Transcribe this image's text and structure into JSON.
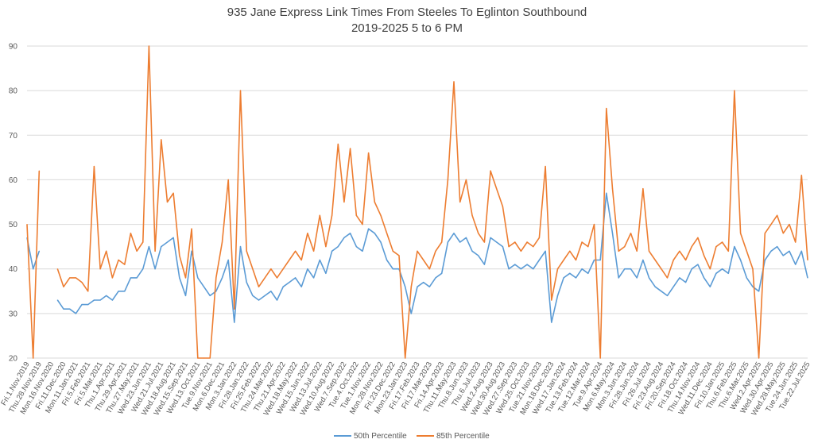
{
  "chart_data": {
    "type": "line",
    "title": "935 Jane Express Link Times From Steeles To Eglinton Southbound",
    "subtitle": "2019-2025 5 to 6 PM",
    "xlabel": "",
    "ylabel": "",
    "ylim": [
      20,
      90
    ],
    "yticks": [
      20,
      30,
      40,
      50,
      60,
      70,
      80,
      90
    ],
    "grid": true,
    "legend_position": "bottom",
    "colors": {
      "p50": "#5B9BD5",
      "p85": "#ED7D31",
      "grid": "#D9D9D9"
    },
    "tick_labels": [
      "Fri.1.Nov.2019",
      "Thu.28.Nov.2019",
      "Mon.16.Nov.2020",
      "Fri.11.Dec.2020",
      "Mon.11.Jan.2021",
      "Fri.5.Feb.2021",
      "Fri.5.Mar.2021",
      "Thu.1.Apr.2021",
      "Thu.29.Apr.2021",
      "Thu.27.May.2021",
      "Wed.23.Jun.2021",
      "Wed.21.Jul.2021",
      "Wed.18.Aug.2021",
      "Wed.15.Sep.2021",
      "Wed.13.Oct.2021",
      "Tue.9.Nov.2021",
      "Mon.6.Dec.2021",
      "Mon.3.Jan.2022",
      "Fri.28.Jan.2022",
      "Fri.25.Feb.2022",
      "Thu.24.Mar.2022",
      "Thu.21.Apr.2022",
      "Wed.18.May.2022",
      "Wed.15.Jun.2022",
      "Wed.13.Jul.2022",
      "Wed.10.Aug.2022",
      "Wed.7.Sep.2022",
      "Tue.4.Oct.2022",
      "Tue.1.Nov.2022",
      "Mon.28.Nov.2022",
      "Fri.23.Dec.2022",
      "Mon.23.Jan.2023",
      "Fri.17.Feb.2023",
      "Fri.17.Mar.2023",
      "Fri.14.Apr.2023",
      "Thu.11.May.2023",
      "Thu.8.Jun.2023",
      "Thu.6.Jul.2023",
      "Wed.2.Aug.2023",
      "Wed.30.Aug.2023",
      "Wed.27.Sep.2023",
      "Wed.25.Oct.2023",
      "Tue.21.Nov.2023",
      "Mon.18.Dec.2023",
      "Wed.17.Jan.2024",
      "Tue.13.Feb.2024",
      "Tue.12.Mar.2024",
      "Tue.9.Apr.2024",
      "Mon.6.May.2024",
      "Mon.3.Jun.2024",
      "Fri.28.Jun.2024",
      "Fri.26.Jul.2024",
      "Fri.23.Aug.2024",
      "Fri.20.Sep.2024",
      "Fri.18.Oct.2024",
      "Thu.14.Nov.2024",
      "Wed.11.Dec.2024",
      "Fri.10.Jan.2025",
      "Thu.6.Feb.2025",
      "Thu.6.Mar.2025",
      "Wed.2.Apr.2025",
      "Wed.30.Apr.2025",
      "Wed.28.May.2025",
      "Tue.24.Jun.2025",
      "Tue.22.Jul.2025"
    ],
    "points_per_tick": 2,
    "series": [
      {
        "name": "50th Percentile",
        "key": "p50",
        "values": [
          47,
          40,
          44,
          null,
          null,
          33,
          31,
          31,
          30,
          32,
          32,
          33,
          33,
          34,
          33,
          35,
          35,
          38,
          38,
          40,
          45,
          40,
          45,
          46,
          47,
          38,
          34,
          44,
          38,
          36,
          34,
          35,
          38,
          42,
          28,
          45,
          37,
          34,
          33,
          34,
          35,
          33,
          36,
          37,
          38,
          36,
          40,
          38,
          42,
          39,
          44,
          45,
          47,
          48,
          45,
          44,
          49,
          48,
          46,
          42,
          40,
          40,
          36,
          30,
          36,
          37,
          36,
          38,
          39,
          46,
          48,
          46,
          47,
          44,
          43,
          41,
          47,
          46,
          45,
          40,
          41,
          40,
          41,
          40,
          42,
          44,
          28,
          34,
          38,
          39,
          38,
          40,
          39,
          42,
          42,
          57,
          48,
          38,
          40,
          40,
          38,
          42,
          38,
          36,
          35,
          34,
          36,
          38,
          37,
          40,
          41,
          38,
          36,
          39,
          40,
          39,
          45,
          42,
          38,
          36,
          35,
          42,
          44,
          45,
          43,
          44,
          41,
          44,
          38
        ]
      },
      {
        "name": "85th Percentile",
        "key": "p85",
        "values": [
          50,
          20,
          62,
          null,
          null,
          40,
          36,
          38,
          38,
          37,
          35,
          63,
          40,
          44,
          38,
          42,
          41,
          48,
          44,
          46,
          90,
          44,
          69,
          55,
          57,
          43,
          38,
          49,
          20,
          20,
          20,
          38,
          46,
          60,
          31,
          80,
          44,
          40,
          36,
          38,
          40,
          38,
          40,
          42,
          44,
          42,
          48,
          44,
          52,
          45,
          52,
          68,
          55,
          67,
          52,
          50,
          66,
          55,
          52,
          48,
          44,
          43,
          20,
          36,
          44,
          42,
          40,
          44,
          46,
          60,
          82,
          55,
          60,
          52,
          48,
          46,
          62,
          58,
          54,
          45,
          46,
          44,
          46,
          45,
          47,
          63,
          33,
          40,
          42,
          44,
          42,
          46,
          45,
          50,
          20,
          76,
          58,
          44,
          45,
          48,
          44,
          58,
          44,
          42,
          40,
          38,
          42,
          44,
          42,
          45,
          47,
          43,
          40,
          45,
          46,
          44,
          80,
          48,
          44,
          40,
          20,
          48,
          50,
          52,
          48,
          50,
          46,
          61,
          42
        ]
      }
    ]
  }
}
